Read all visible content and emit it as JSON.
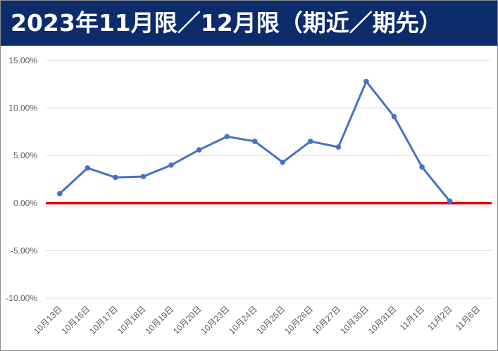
{
  "title": "2023年11月限／12月限（期近／期先）",
  "colors": {
    "title_bg": "#0d2c6c",
    "line": "#4472c4",
    "zero_line": "#e00000",
    "grid": "#d9d9d9"
  },
  "chart_data": {
    "type": "line",
    "title": "2023年11月限／12月限（期近／期先）",
    "xlabel": "",
    "ylabel": "",
    "categories": [
      "10月13日",
      "10月16日",
      "10月17日",
      "10月18日",
      "10月19日",
      "10月20日",
      "10月23日",
      "10月24日",
      "10月25日",
      "10月26日",
      "10月27日",
      "10月30日",
      "10月31日",
      "11月1日",
      "11月2日",
      "11月6日"
    ],
    "series": [
      {
        "values": [
          1.0,
          3.7,
          2.7,
          2.8,
          4.0,
          5.6,
          7.0,
          6.5,
          4.3,
          6.5,
          5.9,
          12.8,
          9.1,
          3.8,
          0.2,
          null
        ]
      }
    ],
    "reference_line": 0,
    "ylim": [
      -10,
      15
    ],
    "yticks": [
      15,
      10,
      5,
      0,
      -5,
      -10
    ],
    "ytick_labels": [
      "15.00%",
      "10.00%",
      "5.00%",
      "0.00%",
      "-5.00%",
      "-10.00%"
    ],
    "grid": true,
    "legend": "none"
  }
}
